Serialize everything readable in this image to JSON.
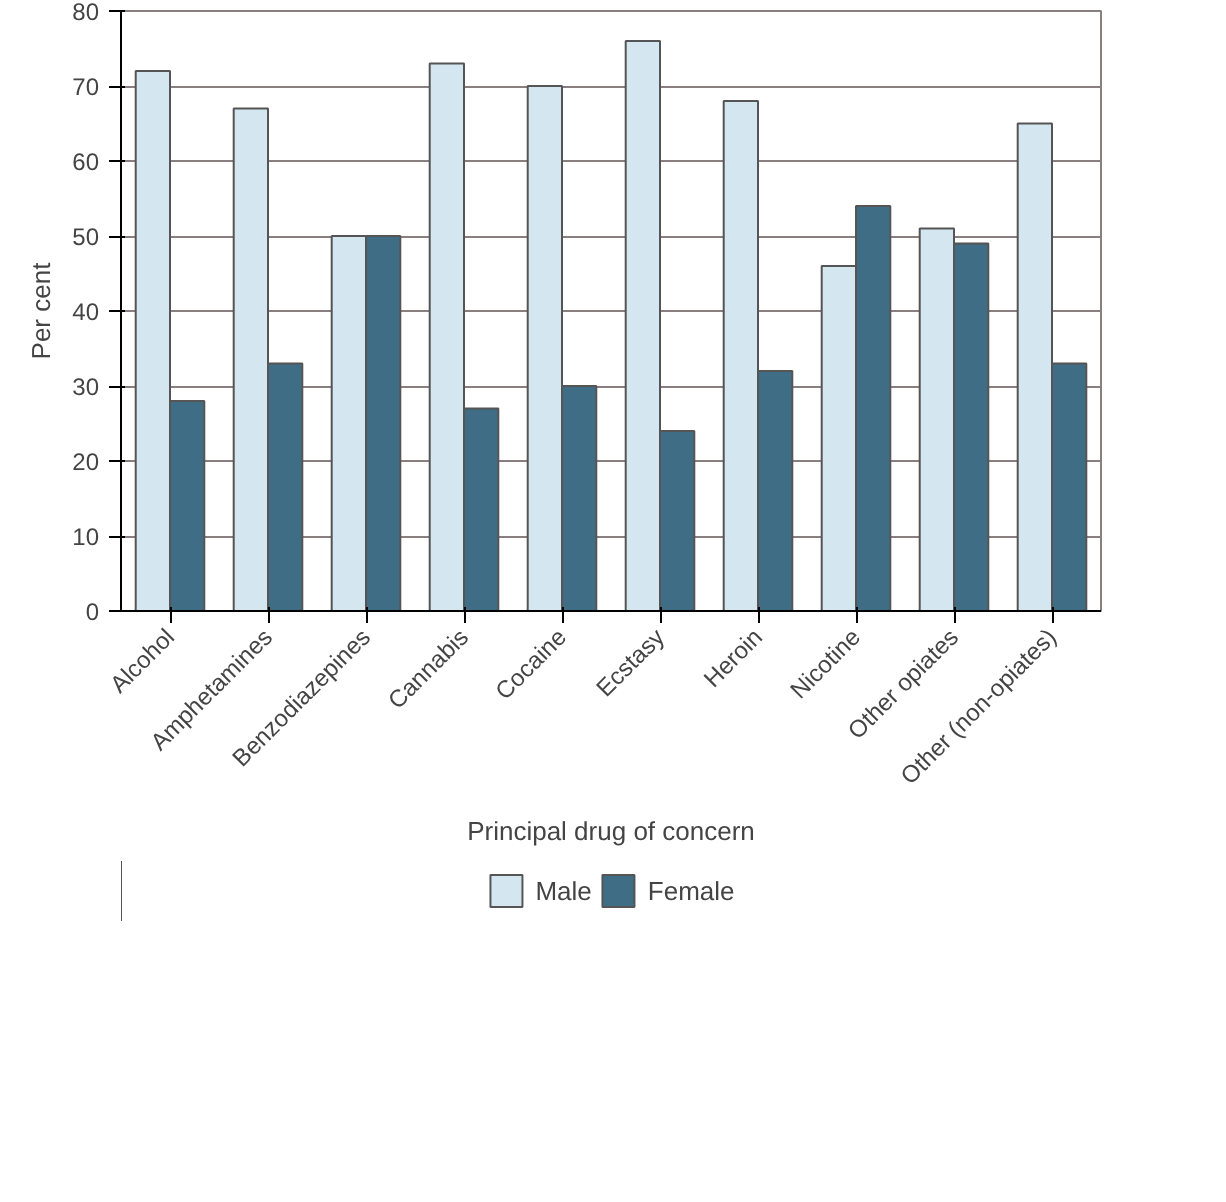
{
  "chart_data": {
    "type": "bar",
    "xlabel": "Principal drug of concern",
    "ylabel": "Per cent",
    "categories": [
      "Alcohol",
      "Amphetamines",
      "Benzodiazepines",
      "Cannabis",
      "Cocaine",
      "Ecstasy",
      "Heroin",
      "Nicotine",
      "Other opiates",
      "Other (non-opiates)"
    ],
    "series": [
      {
        "name": "Male",
        "color": "#d4e6ef",
        "values": [
          72,
          67,
          50,
          73,
          70,
          76,
          68,
          46,
          51,
          65
        ]
      },
      {
        "name": "Female",
        "color": "#3f6d85",
        "values": [
          28,
          33,
          50,
          27,
          30,
          24,
          32,
          54,
          49,
          33
        ]
      }
    ],
    "ylim": [
      0,
      80
    ],
    "yticks": [
      0,
      10,
      20,
      30,
      40,
      50,
      60,
      70,
      80
    ],
    "grid": "y",
    "legend": "bottom"
  }
}
